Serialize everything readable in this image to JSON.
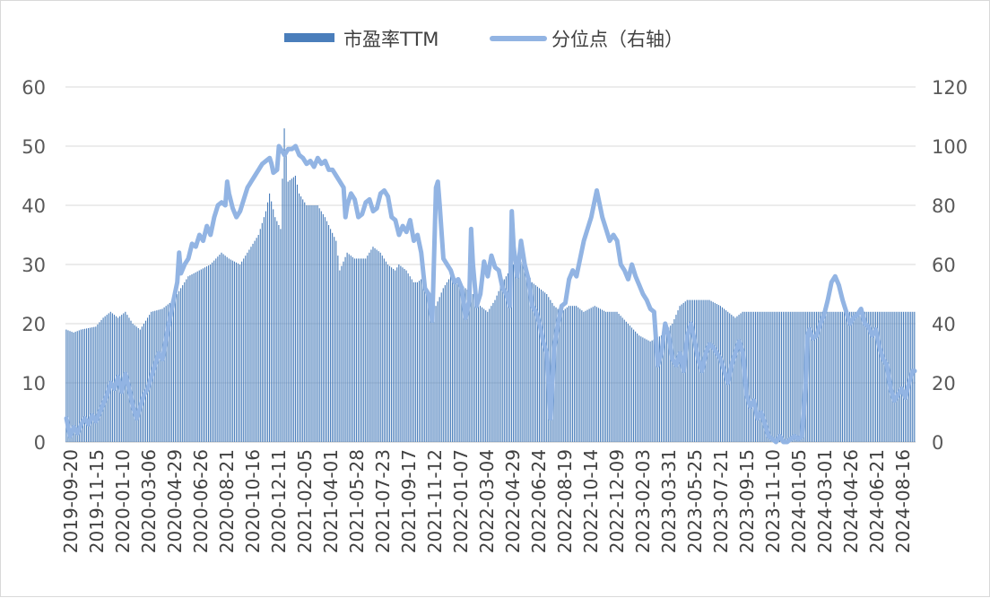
{
  "chart_data": {
    "type": "bar",
    "legend_position": "top-center",
    "grid": true,
    "series": [
      {
        "name": "市盈率TTM",
        "kind": "bar",
        "axis": "left",
        "color": "#4a7ebb"
      },
      {
        "name": "分位点（右轴）",
        "kind": "line",
        "axis": "right",
        "color": "#92b4e3"
      }
    ],
    "y_left": {
      "ylim": [
        0,
        60
      ],
      "ticks": [
        "0",
        "10",
        "20",
        "30",
        "40",
        "50",
        "60"
      ]
    },
    "y_right": {
      "ylim": [
        0,
        120
      ],
      "ticks": [
        "0",
        "20",
        "40",
        "60",
        "80",
        "100",
        "120"
      ]
    },
    "x_tick_labels": [
      "2019-09-20",
      "2019-11-15",
      "2020-01-10",
      "2020-03-06",
      "2020-04-29",
      "2020-06-26",
      "2020-08-21",
      "2020-10-16",
      "2020-12-11",
      "2021-02-05",
      "2021-04-01",
      "2021-05-28",
      "2021-07-23",
      "2021-09-17",
      "2021-11-12",
      "2022-01-07",
      "2022-03-04",
      "2022-04-29",
      "2022-06-24",
      "2022-08-19",
      "2022-10-14",
      "2022-12-09",
      "2023-02-03",
      "2023-03-31",
      "2023-05-25",
      "2023-07-21",
      "2023-09-15",
      "2023-11-10",
      "2024-01-05",
      "2024-03-01",
      "2024-04-26",
      "2024-06-21",
      "2024-08-16"
    ],
    "pe_anchors": [
      [
        0,
        19
      ],
      [
        4,
        18.5
      ],
      [
        8,
        19
      ],
      [
        16,
        19.5
      ],
      [
        20,
        21
      ],
      [
        24,
        22
      ],
      [
        28,
        21
      ],
      [
        32,
        22
      ],
      [
        36,
        20
      ],
      [
        40,
        19
      ],
      [
        46,
        22
      ],
      [
        52,
        22.5
      ],
      [
        58,
        24
      ],
      [
        62,
        26
      ],
      [
        66,
        28
      ],
      [
        72,
        29
      ],
      [
        78,
        30
      ],
      [
        84,
        32
      ],
      [
        88,
        31
      ],
      [
        94,
        30
      ],
      [
        100,
        33
      ],
      [
        104,
        35
      ],
      [
        108,
        39
      ],
      [
        110,
        42
      ],
      [
        113,
        38
      ],
      [
        116,
        36
      ],
      [
        118,
        53
      ],
      [
        120,
        44
      ],
      [
        124,
        45
      ],
      [
        126,
        42
      ],
      [
        130,
        40
      ],
      [
        136,
        40
      ],
      [
        140,
        38
      ],
      [
        146,
        34
      ],
      [
        148,
        29
      ],
      [
        152,
        32
      ],
      [
        156,
        31
      ],
      [
        162,
        31
      ],
      [
        166,
        33
      ],
      [
        170,
        32
      ],
      [
        174,
        30
      ],
      [
        178,
        29
      ],
      [
        180,
        30
      ],
      [
        184,
        29
      ],
      [
        188,
        27
      ],
      [
        190,
        27
      ],
      [
        194,
        28
      ],
      [
        196,
        24
      ],
      [
        200,
        23
      ],
      [
        204,
        26
      ],
      [
        208,
        28
      ],
      [
        212,
        27
      ],
      [
        216,
        26
      ],
      [
        220,
        25
      ],
      [
        224,
        23
      ],
      [
        228,
        22
      ],
      [
        232,
        24
      ],
      [
        236,
        27
      ],
      [
        240,
        29
      ],
      [
        244,
        31
      ],
      [
        248,
        30
      ],
      [
        252,
        27
      ],
      [
        256,
        26
      ],
      [
        260,
        25
      ],
      [
        264,
        23
      ],
      [
        268,
        22
      ],
      [
        272,
        23
      ],
      [
        276,
        23
      ],
      [
        280,
        22
      ],
      [
        286,
        23
      ],
      [
        292,
        22
      ],
      [
        298,
        22
      ],
      [
        304,
        20
      ],
      [
        310,
        18
      ],
      [
        316,
        17
      ],
      [
        322,
        18
      ],
      [
        328,
        20
      ],
      [
        332,
        23
      ],
      [
        336,
        24
      ],
      [
        342,
        24
      ],
      [
        348,
        24
      ],
      [
        354,
        23
      ],
      [
        358,
        22
      ],
      [
        362,
        21
      ],
      [
        366,
        22
      ]
    ],
    "pct_anchors": [
      [
        0,
        8
      ],
      [
        2,
        2
      ],
      [
        4,
        5
      ],
      [
        6,
        3
      ],
      [
        8,
        6
      ],
      [
        10,
        8
      ],
      [
        12,
        6
      ],
      [
        14,
        9
      ],
      [
        16,
        7
      ],
      [
        18,
        10
      ],
      [
        20,
        13
      ],
      [
        22,
        16
      ],
      [
        24,
        20
      ],
      [
        26,
        18
      ],
      [
        28,
        22
      ],
      [
        30,
        17
      ],
      [
        32,
        23
      ],
      [
        34,
        18
      ],
      [
        36,
        12
      ],
      [
        38,
        8
      ],
      [
        40,
        12
      ],
      [
        42,
        16
      ],
      [
        44,
        18
      ],
      [
        46,
        22
      ],
      [
        48,
        26
      ],
      [
        50,
        30
      ],
      [
        52,
        28
      ],
      [
        54,
        35
      ],
      [
        56,
        42
      ],
      [
        58,
        48
      ],
      [
        60,
        54
      ],
      [
        61,
        64
      ],
      [
        62,
        57
      ],
      [
        64,
        60
      ],
      [
        66,
        62
      ],
      [
        68,
        67
      ],
      [
        70,
        66
      ],
      [
        72,
        70
      ],
      [
        74,
        68
      ],
      [
        76,
        73
      ],
      [
        78,
        70
      ],
      [
        80,
        76
      ],
      [
        82,
        80
      ],
      [
        84,
        81
      ],
      [
        86,
        80
      ],
      [
        87,
        88
      ],
      [
        88,
        84
      ],
      [
        90,
        79
      ],
      [
        92,
        76
      ],
      [
        94,
        78
      ],
      [
        96,
        82
      ],
      [
        98,
        86
      ],
      [
        100,
        88
      ],
      [
        102,
        90
      ],
      [
        104,
        92
      ],
      [
        106,
        94
      ],
      [
        108,
        95
      ],
      [
        110,
        96
      ],
      [
        111,
        94
      ],
      [
        112,
        91
      ],
      [
        114,
        92
      ],
      [
        115,
        100
      ],
      [
        116,
        99
      ],
      [
        118,
        97
      ],
      [
        120,
        99
      ],
      [
        122,
        99
      ],
      [
        124,
        100
      ],
      [
        126,
        97
      ],
      [
        128,
        96
      ],
      [
        130,
        94
      ],
      [
        132,
        95
      ],
      [
        134,
        93
      ],
      [
        136,
        96
      ],
      [
        138,
        94
      ],
      [
        140,
        95
      ],
      [
        142,
        92
      ],
      [
        144,
        92
      ],
      [
        146,
        90
      ],
      [
        148,
        88
      ],
      [
        150,
        86
      ],
      [
        151,
        76
      ],
      [
        152,
        80
      ],
      [
        154,
        84
      ],
      [
        156,
        82
      ],
      [
        158,
        76
      ],
      [
        160,
        77
      ],
      [
        162,
        81
      ],
      [
        164,
        82
      ],
      [
        166,
        78
      ],
      [
        168,
        79
      ],
      [
        170,
        84
      ],
      [
        172,
        85
      ],
      [
        174,
        83
      ],
      [
        176,
        76
      ],
      [
        178,
        75
      ],
      [
        180,
        70
      ],
      [
        182,
        73
      ],
      [
        184,
        71
      ],
      [
        186,
        75
      ],
      [
        188,
        68
      ],
      [
        190,
        70
      ],
      [
        192,
        64
      ],
      [
        194,
        52
      ],
      [
        196,
        50
      ],
      [
        198,
        41
      ],
      [
        200,
        86
      ],
      [
        201,
        88
      ],
      [
        202,
        80
      ],
      [
        204,
        62
      ],
      [
        206,
        60
      ],
      [
        208,
        58
      ],
      [
        210,
        54
      ],
      [
        212,
        55
      ],
      [
        214,
        52
      ],
      [
        216,
        42
      ],
      [
        218,
        48
      ],
      [
        219,
        72
      ],
      [
        220,
        60
      ],
      [
        222,
        46
      ],
      [
        224,
        50
      ],
      [
        226,
        61
      ],
      [
        228,
        56
      ],
      [
        230,
        63
      ],
      [
        232,
        59
      ],
      [
        234,
        58
      ],
      [
        236,
        52
      ],
      [
        238,
        50
      ],
      [
        240,
        46
      ],
      [
        241,
        78
      ],
      [
        242,
        66
      ],
      [
        244,
        56
      ],
      [
        246,
        68
      ],
      [
        248,
        60
      ],
      [
        250,
        55
      ],
      [
        252,
        46
      ],
      [
        254,
        44
      ],
      [
        256,
        40
      ],
      [
        258,
        34
      ],
      [
        260,
        30
      ],
      [
        261,
        20
      ],
      [
        262,
        8
      ],
      [
        263,
        20
      ],
      [
        264,
        32
      ],
      [
        266,
        40
      ],
      [
        268,
        46
      ],
      [
        270,
        47
      ],
      [
        272,
        55
      ],
      [
        274,
        58
      ],
      [
        276,
        56
      ],
      [
        278,
        62
      ],
      [
        280,
        68
      ],
      [
        282,
        72
      ],
      [
        284,
        76
      ],
      [
        286,
        82
      ],
      [
        287,
        85
      ],
      [
        288,
        82
      ],
      [
        290,
        76
      ],
      [
        292,
        72
      ],
      [
        294,
        68
      ],
      [
        296,
        70
      ],
      [
        298,
        68
      ],
      [
        300,
        60
      ],
      [
        302,
        58
      ],
      [
        304,
        55
      ],
      [
        306,
        60
      ],
      [
        308,
        56
      ],
      [
        310,
        53
      ],
      [
        312,
        50
      ],
      [
        314,
        48
      ],
      [
        316,
        45
      ],
      [
        318,
        44
      ],
      [
        320,
        26
      ],
      [
        322,
        30
      ],
      [
        324,
        40
      ],
      [
        326,
        36
      ],
      [
        328,
        28
      ],
      [
        330,
        26
      ],
      [
        332,
        30
      ],
      [
        334,
        24
      ],
      [
        336,
        36
      ],
      [
        338,
        40
      ],
      [
        340,
        34
      ],
      [
        342,
        28
      ],
      [
        344,
        24
      ],
      [
        346,
        30
      ],
      [
        348,
        33
      ],
      [
        350,
        32
      ],
      [
        352,
        30
      ],
      [
        354,
        28
      ],
      [
        356,
        24
      ],
      [
        358,
        20
      ],
      [
        360,
        26
      ],
      [
        362,
        30
      ],
      [
        364,
        34
      ],
      [
        366,
        30
      ],
      [
        368,
        16
      ],
      [
        370,
        12
      ],
      [
        372,
        14
      ],
      [
        374,
        8
      ],
      [
        376,
        10
      ],
      [
        378,
        6
      ],
      [
        380,
        2
      ],
      [
        382,
        1
      ],
      [
        384,
        0
      ],
      [
        386,
        2
      ],
      [
        388,
        0
      ],
      [
        390,
        0
      ],
      [
        392,
        1
      ],
      [
        394,
        2
      ],
      [
        396,
        1
      ],
      [
        398,
        2
      ],
      [
        400,
        20
      ],
      [
        401,
        36
      ],
      [
        402,
        38
      ],
      [
        404,
        35
      ],
      [
        406,
        36
      ],
      [
        408,
        40
      ],
      [
        410,
        43
      ],
      [
        412,
        48
      ],
      [
        414,
        54
      ],
      [
        416,
        56
      ],
      [
        418,
        53
      ],
      [
        420,
        48
      ],
      [
        422,
        44
      ],
      [
        424,
        40
      ],
      [
        426,
        42
      ],
      [
        428,
        43
      ],
      [
        430,
        45
      ],
      [
        432,
        40
      ],
      [
        434,
        39
      ],
      [
        436,
        36
      ],
      [
        438,
        38
      ],
      [
        440,
        32
      ],
      [
        442,
        28
      ],
      [
        444,
        26
      ],
      [
        446,
        18
      ],
      [
        448,
        14
      ],
      [
        450,
        16
      ],
      [
        452,
        18
      ],
      [
        454,
        15
      ],
      [
        456,
        20
      ],
      [
        458,
        24
      ]
    ]
  }
}
